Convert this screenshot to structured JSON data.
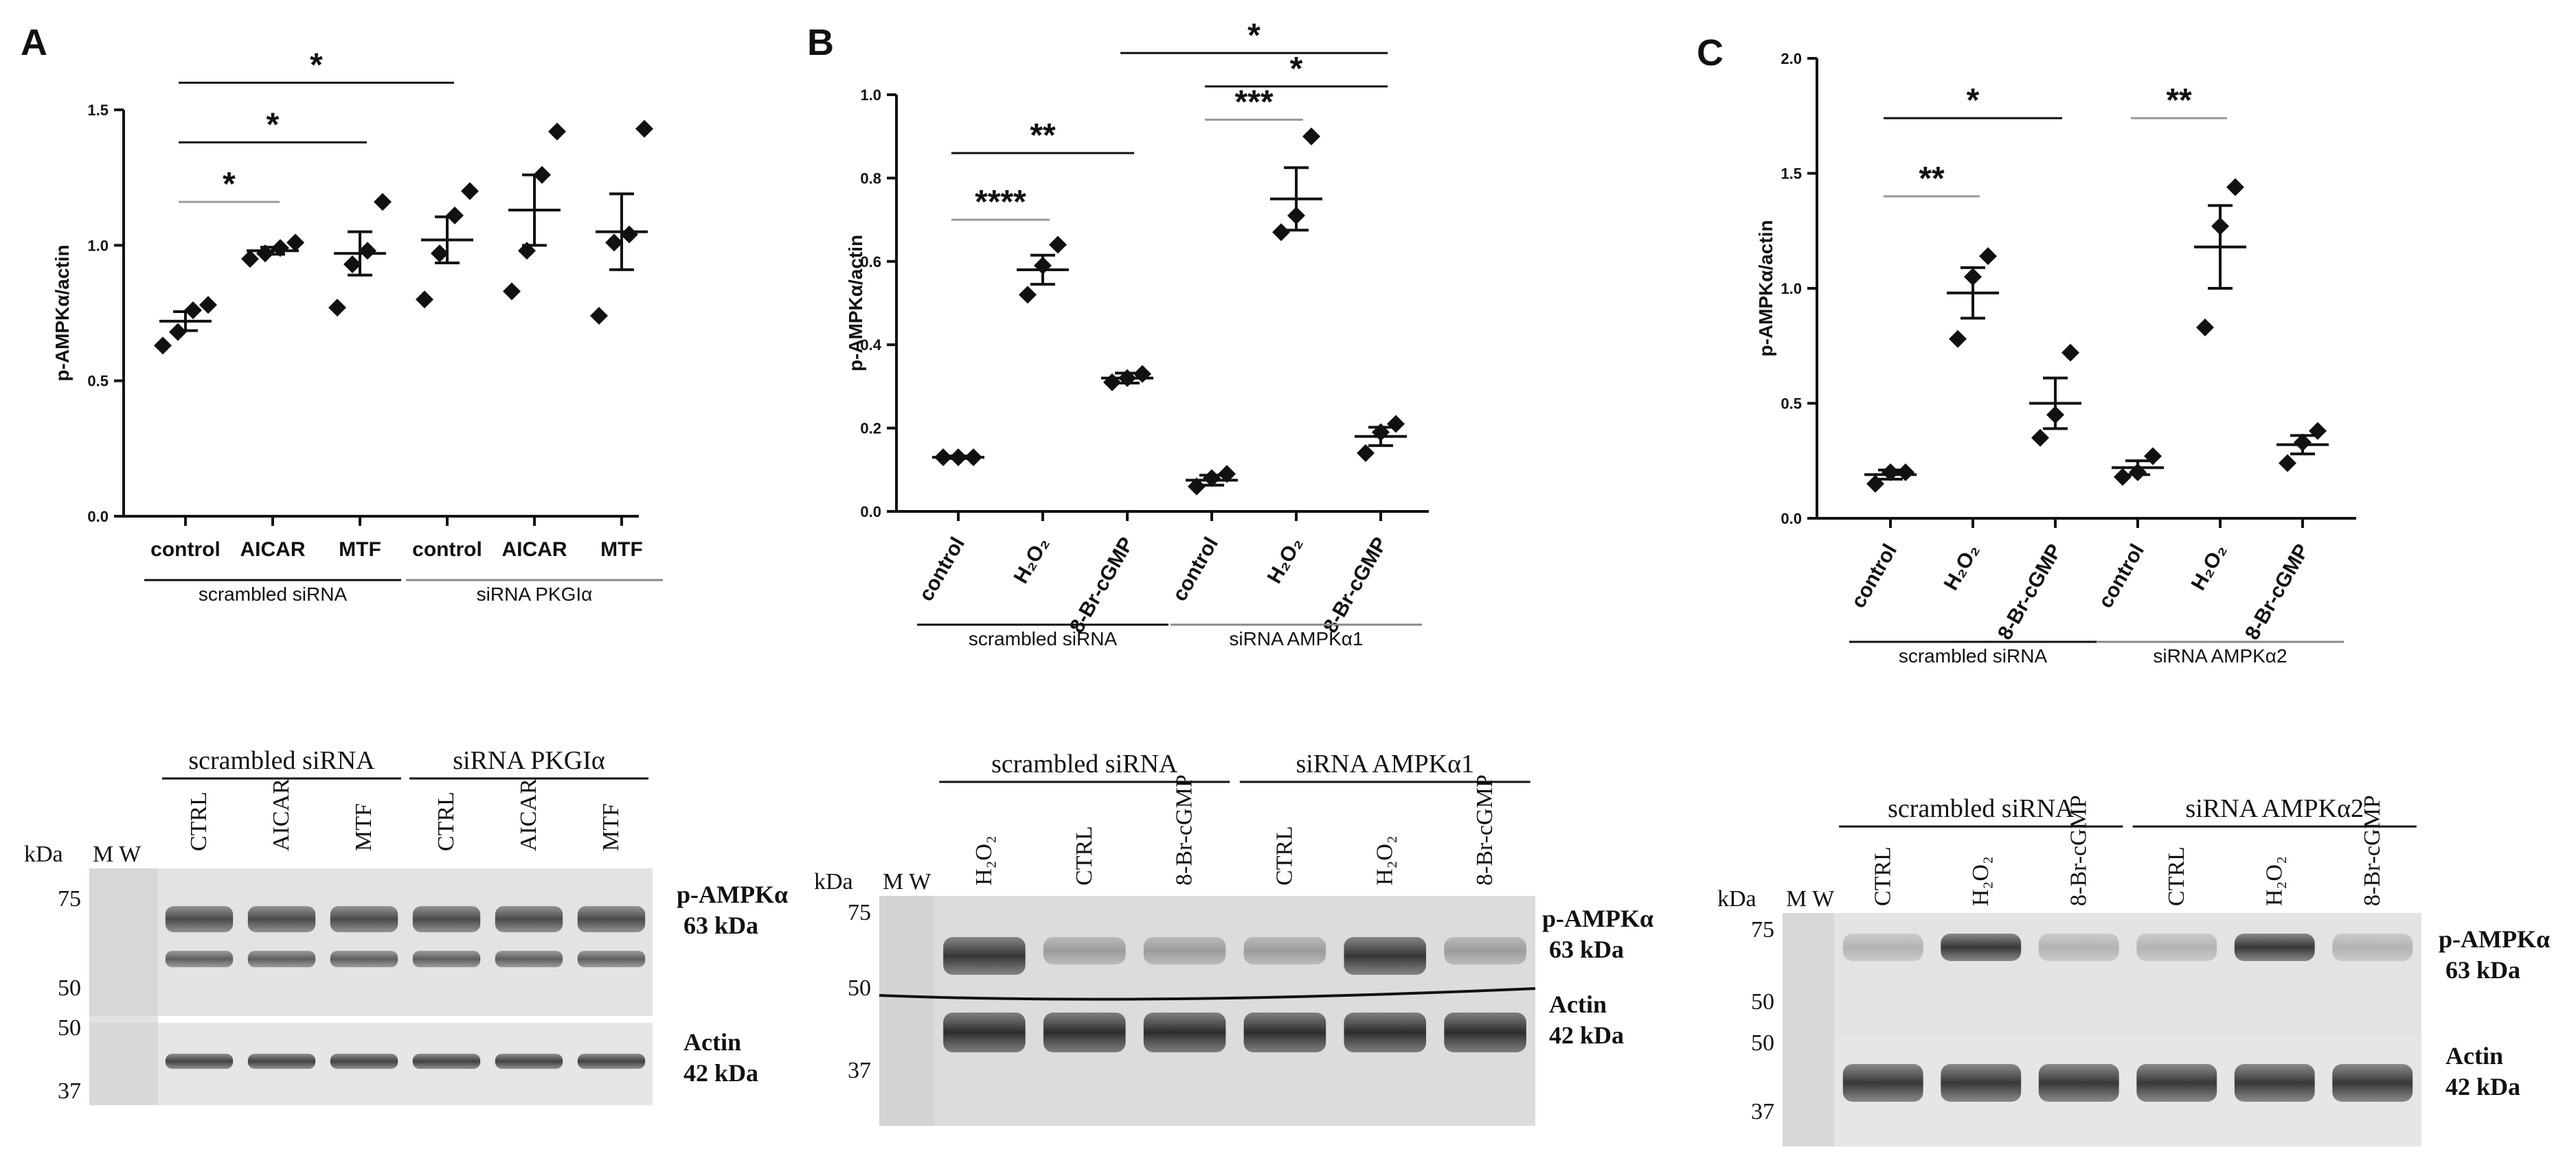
{
  "chart_data": [
    {
      "type": "scatter",
      "panel": "A",
      "ylabel": "p-AMPKα/actin",
      "ylim": [
        0,
        1.5
      ],
      "yticks": [
        "0.0",
        "0.5",
        "1.0",
        "1.5"
      ],
      "categories": [
        "control",
        "AICAR",
        "MTF",
        "control",
        "AICAR",
        "MTF"
      ],
      "groups": [
        {
          "label": "scrambled siRNA",
          "from": 0,
          "to": 2
        },
        {
          "label": "siRNA PKGIα",
          "from": 3,
          "to": 5
        }
      ],
      "points": [
        [
          0.63,
          0.68,
          0.76,
          0.78
        ],
        [
          0.95,
          0.97,
          0.99,
          1.01
        ],
        [
          0.77,
          0.93,
          0.98,
          1.16
        ],
        [
          0.8,
          0.97,
          1.11,
          1.2
        ],
        [
          0.83,
          0.98,
          1.26,
          1.42
        ],
        [
          0.74,
          1.01,
          1.04,
          1.43
        ]
      ],
      "mean": [
        0.72,
        0.98,
        0.97,
        1.02,
        1.13,
        1.05
      ],
      "sem": [
        0.035,
        0.013,
        0.08,
        0.085,
        0.13,
        0.14
      ],
      "significance": [
        {
          "from": 0,
          "to": 1,
          "label": "*",
          "y": 1.16
        },
        {
          "from": 0,
          "to": 2,
          "label": "*",
          "y": 1.38
        },
        {
          "from": 0,
          "to": 3,
          "label": "*",
          "y": 1.6
        }
      ]
    },
    {
      "type": "scatter",
      "panel": "B",
      "ylabel": "p-AMPKα/actin",
      "ylim": [
        0,
        1.0
      ],
      "yticks": [
        "0.0",
        "0.2",
        "0.4",
        "0.6",
        "0.8",
        "1.0"
      ],
      "categories": [
        "control",
        "H₂O₂",
        "8-Br-cGMP",
        "control",
        "H₂O₂",
        "8-Br-cGMP"
      ],
      "groups": [
        {
          "label": "scrambled siRNA",
          "from": 0,
          "to": 2
        },
        {
          "label": "siRNA AMPKα1",
          "from": 3,
          "to": 5
        }
      ],
      "points": [
        [
          0.13,
          0.13,
          0.13
        ],
        [
          0.52,
          0.59,
          0.64
        ],
        [
          0.31,
          0.32,
          0.33
        ],
        [
          0.06,
          0.08,
          0.09
        ],
        [
          0.67,
          0.71,
          0.9
        ],
        [
          0.14,
          0.19,
          0.21
        ]
      ],
      "mean": [
        0.13,
        0.58,
        0.32,
        0.075,
        0.75,
        0.18
      ],
      "sem": [
        0.003,
        0.035,
        0.012,
        0.012,
        0.075,
        0.022
      ],
      "significance": [
        {
          "from": 0,
          "to": 1,
          "label": "****",
          "y": 0.7
        },
        {
          "from": 0,
          "to": 2,
          "label": "**",
          "y": 0.86
        },
        {
          "from": 3,
          "to": 4,
          "label": "***",
          "y": 0.94
        },
        {
          "from": 3,
          "to": 5,
          "label": "*",
          "y": 1.02
        },
        {
          "from": 2,
          "to": 5,
          "label": "*",
          "y": 1.1
        }
      ]
    },
    {
      "type": "scatter",
      "panel": "C",
      "ylabel": "p-AMPKα/actin",
      "ylim": [
        0,
        2.0
      ],
      "yticks": [
        "0.0",
        "0.5",
        "1.0",
        "1.5",
        "2.0"
      ],
      "categories": [
        "control",
        "H₂O₂",
        "8-Br-cGMP",
        "control",
        "H₂O₂",
        "8-Br-cGMP"
      ],
      "groups": [
        {
          "label": "scrambled siRNA",
          "from": 0,
          "to": 2
        },
        {
          "label": "siRNA AMPKα2",
          "from": 3,
          "to": 5
        }
      ],
      "points": [
        [
          0.15,
          0.2,
          0.2
        ],
        [
          0.78,
          1.05,
          1.14
        ],
        [
          0.35,
          0.45,
          0.72
        ],
        [
          0.18,
          0.2,
          0.27
        ],
        [
          0.83,
          1.27,
          1.44
        ],
        [
          0.24,
          0.33,
          0.38
        ]
      ],
      "mean": [
        0.19,
        0.98,
        0.5,
        0.22,
        1.18,
        0.32
      ],
      "sem": [
        0.02,
        0.11,
        0.11,
        0.03,
        0.18,
        0.04
      ],
      "significance": [
        {
          "from": 0,
          "to": 1,
          "label": "**",
          "y": 1.4
        },
        {
          "from": 0,
          "to": 2,
          "label": "*",
          "y": 1.74
        },
        {
          "from": 3,
          "to": 4,
          "label": "**",
          "y": 1.74
        }
      ]
    }
  ],
  "blots": [
    {
      "panel": "A",
      "groups": [
        {
          "label": "scrambled siRNA"
        },
        {
          "label": "siRNA PKGIα"
        }
      ],
      "lanes": [
        "CTRL",
        "AICAR",
        "MTF",
        "CTRL",
        "AICAR",
        "MTF"
      ],
      "kda_label": "kDa",
      "mw_label": "M W",
      "markers": [
        "75",
        "50",
        "50",
        "37"
      ],
      "bands": [
        {
          "name": "p-AMPKα",
          "size": "63 kDa"
        },
        {
          "name": "Actin",
          "size": "42 kDa"
        }
      ]
    },
    {
      "panel": "B",
      "groups": [
        {
          "label": "scrambled siRNA"
        },
        {
          "label": "siRNA AMPKα1"
        }
      ],
      "lanes": [
        "H₂O₂",
        "CTRL",
        "8-Br-cGMP",
        "CTRL",
        "H₂O₂",
        "8-Br-cGMP"
      ],
      "kda_label": "kDa",
      "mw_label": "M W",
      "markers": [
        "75",
        "50",
        "37"
      ],
      "bands": [
        {
          "name": "p-AMPKα",
          "size": "63 kDa"
        },
        {
          "name": "Actin",
          "size": "42 kDa"
        }
      ]
    },
    {
      "panel": "C",
      "groups": [
        {
          "label": "scrambled siRNA"
        },
        {
          "label": "siRNA AMPKα2"
        }
      ],
      "lanes": [
        "CTRL",
        "H₂O₂",
        "8-Br-cGMP",
        "CTRL",
        "H₂O₂",
        "8-Br-cGMP"
      ],
      "kda_label": "kDa",
      "mw_label": "M W",
      "markers": [
        "75",
        "50",
        "50",
        "37"
      ],
      "bands": [
        {
          "name": "p-AMPKα",
          "size": "63 kDa"
        },
        {
          "name": "Actin",
          "size": "42 kDa"
        }
      ]
    }
  ]
}
